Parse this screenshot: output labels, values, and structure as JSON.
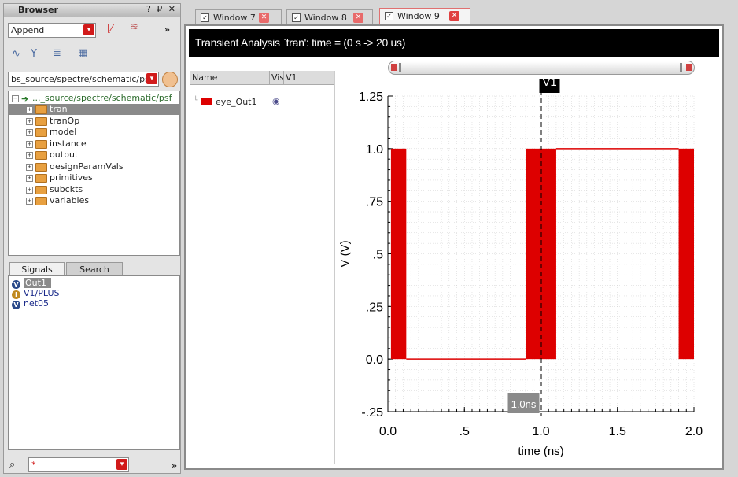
{
  "browser": {
    "title": "Browser",
    "title_controls": "? ₽ ✕",
    "mode_combo": "Append",
    "path_combo": "bs_source/spectre/schematic/psf",
    "more": "»",
    "tree_root": "..._source/spectre/schematic/psf",
    "tree_items": [
      "tran",
      "tranOp",
      "model",
      "instance",
      "output",
      "designParamVals",
      "primitives",
      "subckts",
      "variables"
    ],
    "selected_item": "tran",
    "tabs": [
      "Signals",
      "Search"
    ],
    "signals": [
      {
        "name": "Out1",
        "icon": "V"
      },
      {
        "name": "V1/PLUS",
        "icon": "I"
      },
      {
        "name": "net05",
        "icon": "V"
      }
    ],
    "search_value": "*",
    "search_more": "»"
  },
  "window_tabs": [
    {
      "label": "Window 7",
      "close": "✕"
    },
    {
      "label": "Window 8",
      "close": "✕"
    },
    {
      "label": "Window 9",
      "close": "✕"
    }
  ],
  "plot_window": {
    "title": "Transient Analysis `tran': time = (0 s -> 20 us)",
    "legend_headers": {
      "name": "Name",
      "vis": "Vis",
      "v1": "V1"
    },
    "legend_signal": "eye_Out1",
    "marker_label": "V1",
    "cursor_readout": "1.0ns",
    "colors": {
      "trace": "#dd0000",
      "background": "#ffffff",
      "titlebar": "#000000"
    }
  },
  "chart_data": {
    "type": "line",
    "title": "",
    "xlabel": "time (ns)",
    "ylabel": "V (V)",
    "xlim": [
      0.0,
      2.0
    ],
    "ylim": [
      -0.25,
      1.25
    ],
    "xticks": [
      "0.0",
      ".5",
      "1.0",
      "1.5",
      "2.0"
    ],
    "yticks": [
      "1.25",
      "1.0",
      ".75",
      ".5",
      ".25",
      "0.0",
      "-.25"
    ],
    "ytick_values": [
      1.25,
      1.0,
      0.75,
      0.5,
      0.25,
      0.0,
      -0.25
    ],
    "grid": true,
    "series": [
      {
        "name": "eye_Out1",
        "color": "#dd0000",
        "filled_bands": [
          [
            0.02,
            0.12
          ],
          [
            0.9,
            1.1
          ],
          [
            1.9,
            2.0
          ]
        ],
        "high_segments": [
          [
            1.1,
            1.9
          ]
        ],
        "low_segments": [
          [
            0.12,
            0.9
          ]
        ],
        "high": 1.0,
        "low": 0.0
      }
    ],
    "marker_x": 1.0
  }
}
